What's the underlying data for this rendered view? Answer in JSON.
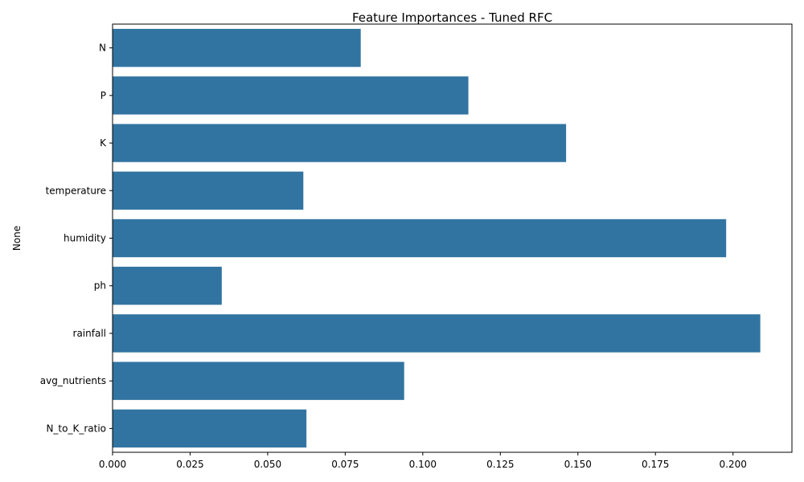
{
  "chart_data": {
    "type": "bar",
    "orientation": "horizontal",
    "title": "Feature Importances - Tuned RFC",
    "xlabel": "",
    "ylabel": "None",
    "categories": [
      "N",
      "P",
      "K",
      "temperature",
      "humidity",
      "ph",
      "rainfall",
      "avg_nutrients",
      "N_to_K_ratio"
    ],
    "values": [
      0.08,
      0.1147,
      0.1462,
      0.0615,
      0.1978,
      0.0352,
      0.2088,
      0.094,
      0.0625
    ],
    "xlim": [
      0,
      0.219
    ],
    "xticks": [
      "0.000",
      "0.025",
      "0.050",
      "0.075",
      "0.100",
      "0.125",
      "0.150",
      "0.175",
      "0.200"
    ],
    "bar_color": "#3274a1",
    "grid": false,
    "legend": "none"
  }
}
